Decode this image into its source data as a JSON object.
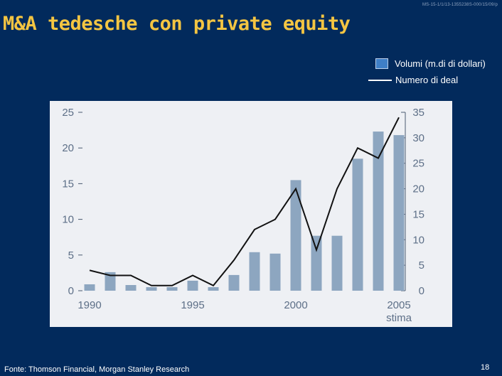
{
  "header": {
    "ref": "MS-15-1/1/13-1355238S-000/15/09/p",
    "title": "M&A tedesche con private equity"
  },
  "legend": {
    "volume_label": "Volumi (m.di di dollari)",
    "deals_label": "Numero di deal"
  },
  "footer": {
    "source": "Fonte: Thomson Financial, Morgan Stanley Research",
    "page": "18"
  },
  "colors": {
    "background": "#022a5c",
    "title": "#f4c542",
    "bars": "#8da6c0",
    "line": "#111111",
    "panel": "#eef0f4",
    "legend_swatch": "#3f7fc7"
  },
  "chart_data": {
    "type": "bar",
    "categories": [
      "1990",
      "1991",
      "1992",
      "1993",
      "1994",
      "1995",
      "1996",
      "1997",
      "1998",
      "1999",
      "2000",
      "2001",
      "2002",
      "2003",
      "2004",
      "2005"
    ],
    "x_tick_labels": [
      "1990",
      "1995",
      "2000",
      "2005"
    ],
    "x_tick_sublabel": "stima",
    "series": [
      {
        "name": "Volumi (m.di di dollari)",
        "type": "bar",
        "axis": "left",
        "values": [
          0.9,
          2.6,
          0.8,
          0.5,
          0.5,
          1.4,
          0.5,
          2.2,
          5.4,
          5.2,
          15.5,
          7.7,
          7.7,
          18.5,
          22.3,
          21.8
        ]
      },
      {
        "name": "Numero di deal",
        "type": "line",
        "axis": "right",
        "values": [
          4,
          3,
          3,
          1,
          1,
          3,
          1,
          6,
          12,
          14,
          20,
          8,
          20,
          28,
          26,
          34
        ]
      }
    ],
    "y_left": {
      "min": 0,
      "max": 25,
      "ticks": [
        0,
        5,
        10,
        15,
        20,
        25
      ]
    },
    "y_right": {
      "min": 0,
      "max": 35,
      "ticks": [
        0,
        5,
        10,
        15,
        20,
        25,
        30,
        35
      ]
    },
    "grid": false
  }
}
